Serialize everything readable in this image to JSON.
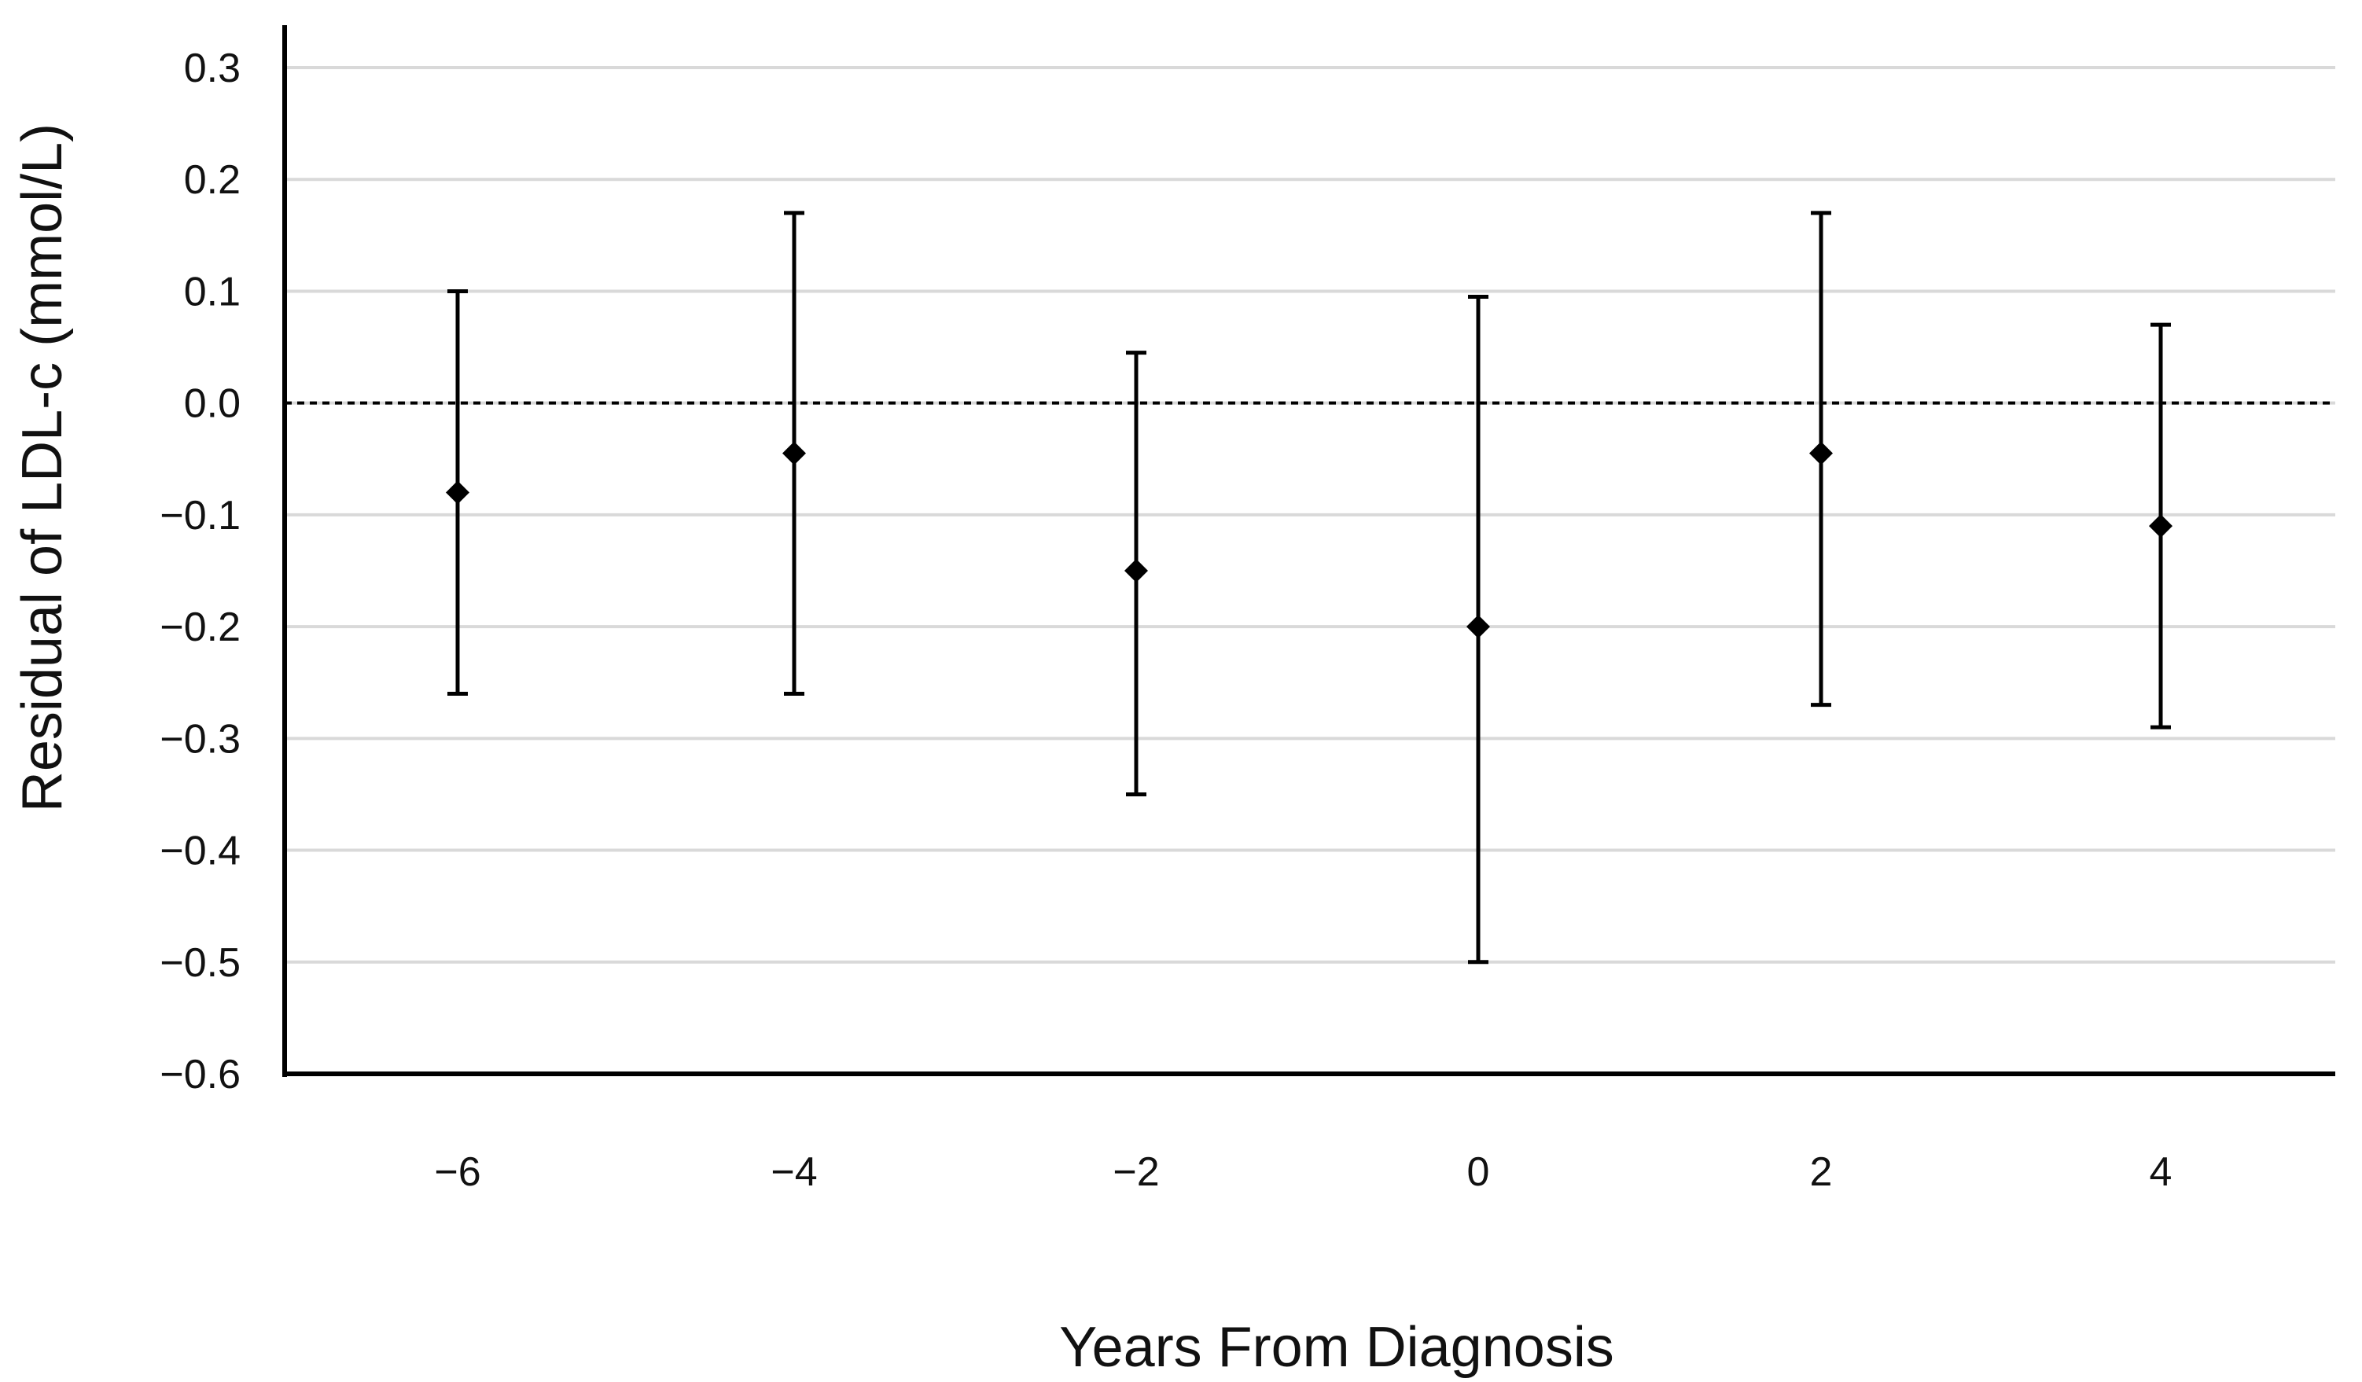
{
  "chart_data": {
    "type": "scatter",
    "title": "",
    "xlabel": "Years From Diagnosis",
    "ylabel": "Residual of LDL-c (mmol/L)",
    "ylim": [
      -0.6,
      0.3
    ],
    "y_ticks": [
      "0.3",
      "0.2",
      "0.1",
      "0.0",
      "−0.1",
      "−0.2",
      "−0.3",
      "−0.4",
      "−0.5",
      "−0.6"
    ],
    "y_tick_values": [
      0.3,
      0.2,
      0.1,
      0.0,
      -0.1,
      -0.2,
      -0.3,
      -0.4,
      -0.5,
      -0.6
    ],
    "categories": [
      "−6",
      "−4",
      "−2",
      "0",
      "2",
      "4"
    ],
    "x": [
      -6,
      -4,
      -2,
      0,
      2,
      4
    ],
    "values": [
      -0.08,
      -0.045,
      -0.15,
      -0.2,
      -0.045,
      -0.11
    ],
    "error_upper": [
      0.1,
      0.17,
      0.045,
      0.095,
      0.17,
      0.07
    ],
    "error_lower": [
      -0.26,
      -0.26,
      -0.35,
      -0.5,
      -0.27,
      -0.29
    ],
    "reference_line": {
      "y": 0.0,
      "style": "dashed"
    },
    "grid": true,
    "legend": "none",
    "colors": {
      "marker": "#000000",
      "grid": "#d9d9d9",
      "axis": "#000000"
    }
  }
}
